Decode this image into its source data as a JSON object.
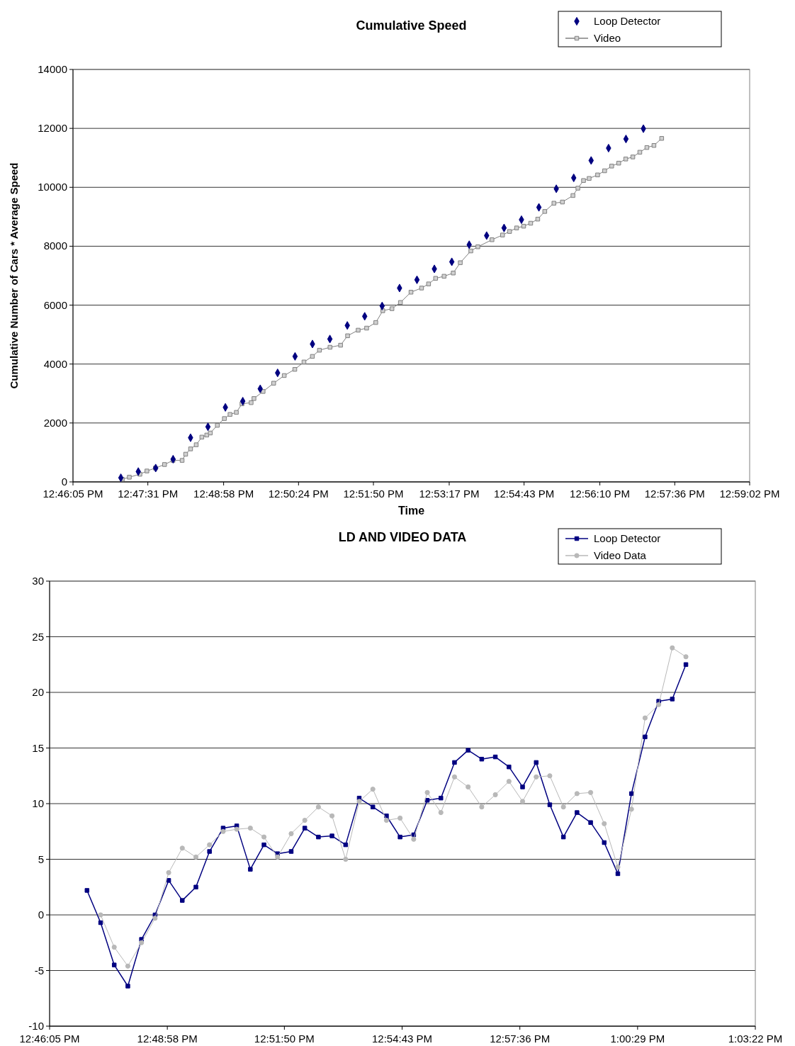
{
  "chart_data": [
    {
      "type": "scatter",
      "title": "Cumulative Speed",
      "xlabel": "Time",
      "ylabel": "Cumulative Number of Cars * Average Speed",
      "xlim": [
        12.76806,
        12.98389
      ],
      "xticks": [
        {
          "value": 12.76806,
          "label": "12:46:05 PM"
        },
        {
          "value": 12.79194,
          "label": "12:47:31 PM"
        },
        {
          "value": 12.81611,
          "label": "12:48:58 PM"
        },
        {
          "value": 12.84,
          "label": "12:50:24 PM"
        },
        {
          "value": 12.86389,
          "label": "12:51:50 PM"
        },
        {
          "value": 12.88806,
          "label": "12:53:17 PM"
        },
        {
          "value": 12.91194,
          "label": "12:54:43 PM"
        },
        {
          "value": 12.93611,
          "label": "12:56:10 PM"
        },
        {
          "value": 12.96,
          "label": "12:57:36 PM"
        },
        {
          "value": 12.98389,
          "label": "12:59:02 PM"
        }
      ],
      "ylim": [
        0,
        14000
      ],
      "yticks": [
        0,
        2000,
        4000,
        6000,
        8000,
        10000,
        12000,
        14000
      ],
      "grid": "y",
      "legend": "top right",
      "series": [
        {
          "name": "Loop Detector",
          "marker": "diamond",
          "color": "#000080",
          "x": [
            12.78333,
            12.78889,
            12.79444,
            12.8,
            12.80556,
            12.81111,
            12.81667,
            12.82222,
            12.82778,
            12.83333,
            12.83889,
            12.84444,
            12.85,
            12.85556,
            12.86111,
            12.86667,
            12.87222,
            12.87778,
            12.88333,
            12.88889,
            12.89444,
            12.9,
            12.90556,
            12.91111,
            12.91667,
            12.92222,
            12.92778,
            12.93333,
            12.93889,
            12.94444,
            12.95
          ],
          "values": [
            140,
            350,
            470,
            770,
            1500,
            1870,
            2530,
            2740,
            3160,
            3700,
            4260,
            4680,
            4850,
            5310,
            5620,
            5970,
            6580,
            6860,
            7230,
            7470,
            8050,
            8360,
            8620,
            8900,
            9320,
            9950,
            10320,
            10910,
            11330,
            11640,
            11990
          ]
        },
        {
          "name": "Video",
          "type": "line",
          "marker": "square",
          "color": "#808080",
          "x": [
            12.78378,
            12.78603,
            12.7894,
            12.79164,
            12.79434,
            12.79726,
            12.79995,
            12.80287,
            12.804,
            12.80557,
            12.80737,
            12.80916,
            12.81073,
            12.81186,
            12.8141,
            12.81635,
            12.81815,
            12.82017,
            12.82196,
            12.82488,
            12.82578,
            12.8287,
            12.83207,
            12.83544,
            12.83881,
            12.84173,
            12.84442,
            12.84667,
            12.85004,
            12.85341,
            12.85565,
            12.85902,
            12.86172,
            12.86464,
            12.86688,
            12.8698,
            12.8725,
            12.87587,
            12.87924,
            12.88148,
            12.88373,
            12.88642,
            12.88934,
            12.89159,
            12.89496,
            12.8972,
            12.9017,
            12.90507,
            12.90731,
            12.90956,
            12.9118,
            12.91405,
            12.9163,
            12.91854,
            12.92146,
            12.92416,
            12.92753,
            12.9291,
            12.9309,
            12.93269,
            12.93539,
            12.93763,
            12.93988,
            12.94213,
            12.94437,
            12.94662,
            12.94886,
            12.95111,
            12.95336,
            12.95583
          ],
          "values": [
            90,
            160,
            260,
            370,
            470,
            590,
            730,
            730,
            940,
            1120,
            1260,
            1520,
            1590,
            1660,
            1920,
            2150,
            2290,
            2360,
            2650,
            2690,
            2830,
            3070,
            3350,
            3610,
            3820,
            4070,
            4260,
            4470,
            4570,
            4640,
            4960,
            5150,
            5220,
            5410,
            5810,
            5880,
            6090,
            6440,
            6580,
            6720,
            6910,
            6980,
            7090,
            7440,
            7840,
            7980,
            8220,
            8380,
            8500,
            8620,
            8680,
            8780,
            8920,
            9180,
            9460,
            9500,
            9720,
            9970,
            10230,
            10300,
            10420,
            10560,
            10720,
            10820,
            10960,
            11030,
            11190,
            11350,
            11420,
            11660
          ]
        }
      ]
    },
    {
      "type": "line",
      "title": "LD AND VIDEO DATA",
      "xlim": [
        12.76806,
        13.05611
      ],
      "xticks": [
        {
          "value": 12.76806,
          "label": "12:46:05 PM"
        },
        {
          "value": 12.81611,
          "label": "12:48:58 PM"
        },
        {
          "value": 12.86389,
          "label": "12:51:50 PM"
        },
        {
          "value": 12.91194,
          "label": "12:54:43 PM"
        },
        {
          "value": 12.96,
          "label": "12:57:36 PM"
        },
        {
          "value": 13.00806,
          "label": "1:00:29 PM"
        },
        {
          "value": 13.05611,
          "label": "1:03:22 PM"
        }
      ],
      "ylim": [
        -10,
        30
      ],
      "yticks": [
        -10,
        -5,
        0,
        5,
        10,
        15,
        20,
        25,
        30
      ],
      "grid": "y",
      "legend": "top right",
      "line_style": "solid",
      "x": [
        12.78333,
        12.78889,
        12.79444,
        12.8,
        12.80556,
        12.81111,
        12.81667,
        12.82222,
        12.82778,
        12.83333,
        12.83889,
        12.84444,
        12.85,
        12.85556,
        12.86111,
        12.86667,
        12.87222,
        12.87778,
        12.88333,
        12.88889,
        12.89444,
        12.9,
        12.90556,
        12.91111,
        12.91667,
        12.92222,
        12.92778,
        12.93333,
        12.93889,
        12.94444,
        12.95,
        12.95556,
        12.96111,
        12.96667,
        12.97222,
        12.97778,
        12.98333,
        12.98889,
        12.99444,
        13.0,
        13.00556,
        13.01111,
        13.01667,
        13.02222,
        13.02778
      ],
      "series": [
        {
          "name": "Loop Detector",
          "marker": "square",
          "color": "#000080",
          "values": [
            2.2,
            -0.7,
            -4.5,
            -6.4,
            -2.2,
            0,
            3.1,
            1.3,
            2.5,
            5.7,
            7.8,
            8.0,
            4.1,
            6.3,
            5.5,
            5.7,
            7.8,
            7.0,
            7.1,
            6.3,
            10.5,
            9.7,
            8.9,
            7.0,
            7.2,
            10.3,
            10.5,
            13.7,
            14.8,
            14.0,
            14.2,
            13.3,
            11.5,
            13.7,
            9.9,
            7.0,
            9.2,
            8.3,
            6.5,
            3.7,
            10.9,
            16.0,
            19.2,
            19.4,
            22.5
          ]
        },
        {
          "name": "Video Data",
          "marker": "circle",
          "color": "#b8b8b8",
          "values": [
            null,
            0,
            -2.9,
            -4.6,
            -2.5,
            -0.3,
            3.8,
            6.0,
            5.2,
            6.3,
            7.5,
            7.7,
            7.8,
            7.0,
            5.2,
            7.3,
            8.5,
            9.7,
            8.9,
            5.0,
            10.2,
            11.3,
            8.5,
            8.7,
            6.8,
            11.0,
            9.2,
            12.4,
            11.5,
            9.7,
            10.8,
            12.0,
            10.2,
            12.4,
            12.5,
            9.7,
            10.9,
            11.0,
            8.2,
            4.3,
            9.5,
            17.7,
            18.9,
            24.0,
            23.2
          ]
        }
      ]
    }
  ]
}
